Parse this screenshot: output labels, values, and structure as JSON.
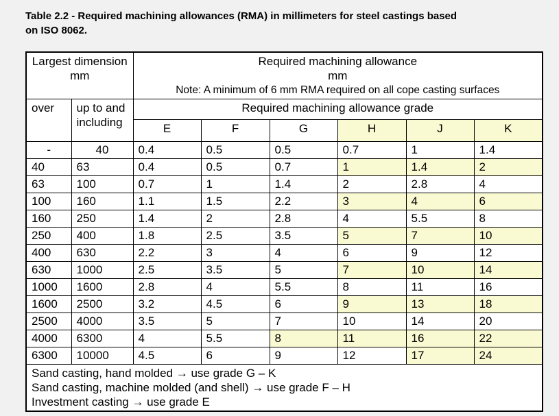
{
  "caption_lines": [
    "Table 2.2 - Required machining allowances (RMA) in millimeters for steel castings based",
    "on ISO 8062."
  ],
  "table": {
    "header": {
      "largest_dimension_lines": [
        "Largest dimension",
        "mm"
      ],
      "rma_lines": [
        "Required machining allowance",
        "mm"
      ],
      "rma_note": "Note:  A minimum of 6 mm RMA required on all cope casting surfaces",
      "over_label": "over",
      "up_to_label": "up to and including",
      "grade_title": "Required machining allowance grade",
      "grades": [
        "E",
        "F",
        "G",
        "H",
        "J",
        "K"
      ],
      "grade_highlight": [
        0,
        0,
        0,
        1,
        1,
        1
      ]
    },
    "rows": [
      {
        "over": "-",
        "upto": "40",
        "values": [
          "0.4",
          "0.5",
          "0.5",
          "0.7",
          "1",
          "1.4"
        ],
        "highlight": [
          0,
          0,
          0,
          0,
          0,
          0
        ]
      },
      {
        "over": "40",
        "upto": "63",
        "values": [
          "0.4",
          "0.5",
          "0.7",
          "1",
          "1.4",
          "2"
        ],
        "highlight": [
          0,
          0,
          0,
          1,
          1,
          1
        ]
      },
      {
        "over": "63",
        "upto": "100",
        "values": [
          "0.7",
          "1",
          "1.4",
          "2",
          "2.8",
          "4"
        ],
        "highlight": [
          0,
          0,
          0,
          0,
          0,
          0
        ]
      },
      {
        "over": "100",
        "upto": "160",
        "values": [
          "1.1",
          "1.5",
          "2.2",
          "3",
          "4",
          "6"
        ],
        "highlight": [
          0,
          0,
          0,
          1,
          1,
          1
        ]
      },
      {
        "over": "160",
        "upto": "250",
        "values": [
          "1.4",
          "2",
          "2.8",
          "4",
          "5.5",
          "8"
        ],
        "highlight": [
          0,
          0,
          0,
          0,
          0,
          0
        ]
      },
      {
        "over": "250",
        "upto": "400",
        "values": [
          "1.8",
          "2.5",
          "3.5",
          "5",
          "7",
          "10"
        ],
        "highlight": [
          0,
          0,
          0,
          1,
          1,
          1
        ]
      },
      {
        "over": "400",
        "upto": "630",
        "values": [
          "2.2",
          "3",
          "4",
          "6",
          "9",
          "12"
        ],
        "highlight": [
          0,
          0,
          0,
          0,
          0,
          0
        ]
      },
      {
        "over": "630",
        "upto": "1000",
        "values": [
          "2.5",
          "3.5",
          "5",
          "7",
          "10",
          "14"
        ],
        "highlight": [
          0,
          0,
          0,
          1,
          1,
          1
        ]
      },
      {
        "over": "1000",
        "upto": "1600",
        "values": [
          "2.8",
          "4",
          "5.5",
          "8",
          "11",
          "16"
        ],
        "highlight": [
          0,
          0,
          0,
          0,
          0,
          0
        ]
      },
      {
        "over": "1600",
        "upto": "2500",
        "values": [
          "3.2",
          "4.5",
          "6",
          "9",
          "13",
          "18"
        ],
        "highlight": [
          0,
          0,
          0,
          1,
          1,
          1
        ]
      },
      {
        "over": "2500",
        "upto": "4000",
        "values": [
          "3.5",
          "5",
          "7",
          "10",
          "14",
          "20"
        ],
        "highlight": [
          0,
          0,
          0,
          0,
          0,
          0
        ]
      },
      {
        "over": "4000",
        "upto": "6300",
        "values": [
          "4",
          "5.5",
          "8",
          "11",
          "16",
          "22"
        ],
        "highlight": [
          0,
          0,
          1,
          1,
          1,
          1
        ]
      },
      {
        "over": "6300",
        "upto": "10000",
        "values": [
          "4.5",
          "6",
          "9",
          "12",
          "17",
          "24"
        ],
        "highlight": [
          0,
          0,
          0,
          0,
          1,
          1
        ]
      }
    ],
    "footer_lines": [
      "Sand casting, hand molded → use grade G – K",
      "Sand casting, machine molded (and shell) → use grade F – H",
      "Investment casting → use grade E"
    ]
  },
  "colors": {
    "highlight_cell": "#FAFAD2",
    "page_background": "#F1F1F1",
    "table_background": "#FFFFFF",
    "border": "#000000",
    "text": "#000000"
  }
}
